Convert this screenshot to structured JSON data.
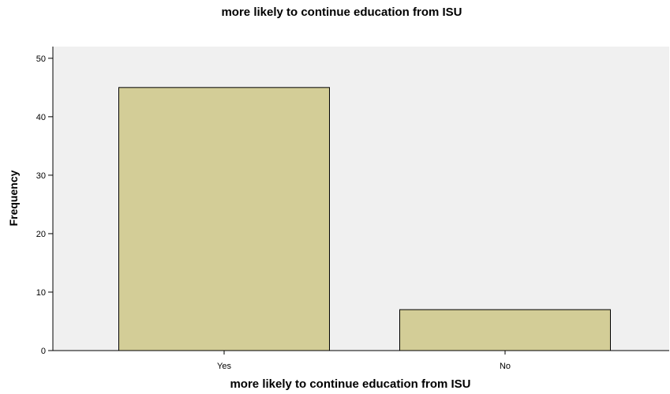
{
  "chart_data": {
    "type": "bar",
    "title": "more likely to continue education from ISU",
    "xlabel": "more likely to continue education from ISU",
    "ylabel": "Frequency",
    "categories": [
      "Yes",
      "No"
    ],
    "values": [
      45,
      7
    ],
    "ylim": [
      0,
      52
    ],
    "yticks": [
      "0",
      "10",
      "20",
      "30",
      "40",
      "50"
    ],
    "grid": false,
    "legend": "none",
    "colors": {
      "bar_fill": "#d3cd97",
      "bar_stroke": "#000000",
      "plot_background": "#f0f0f0",
      "axis": "#000000"
    }
  }
}
